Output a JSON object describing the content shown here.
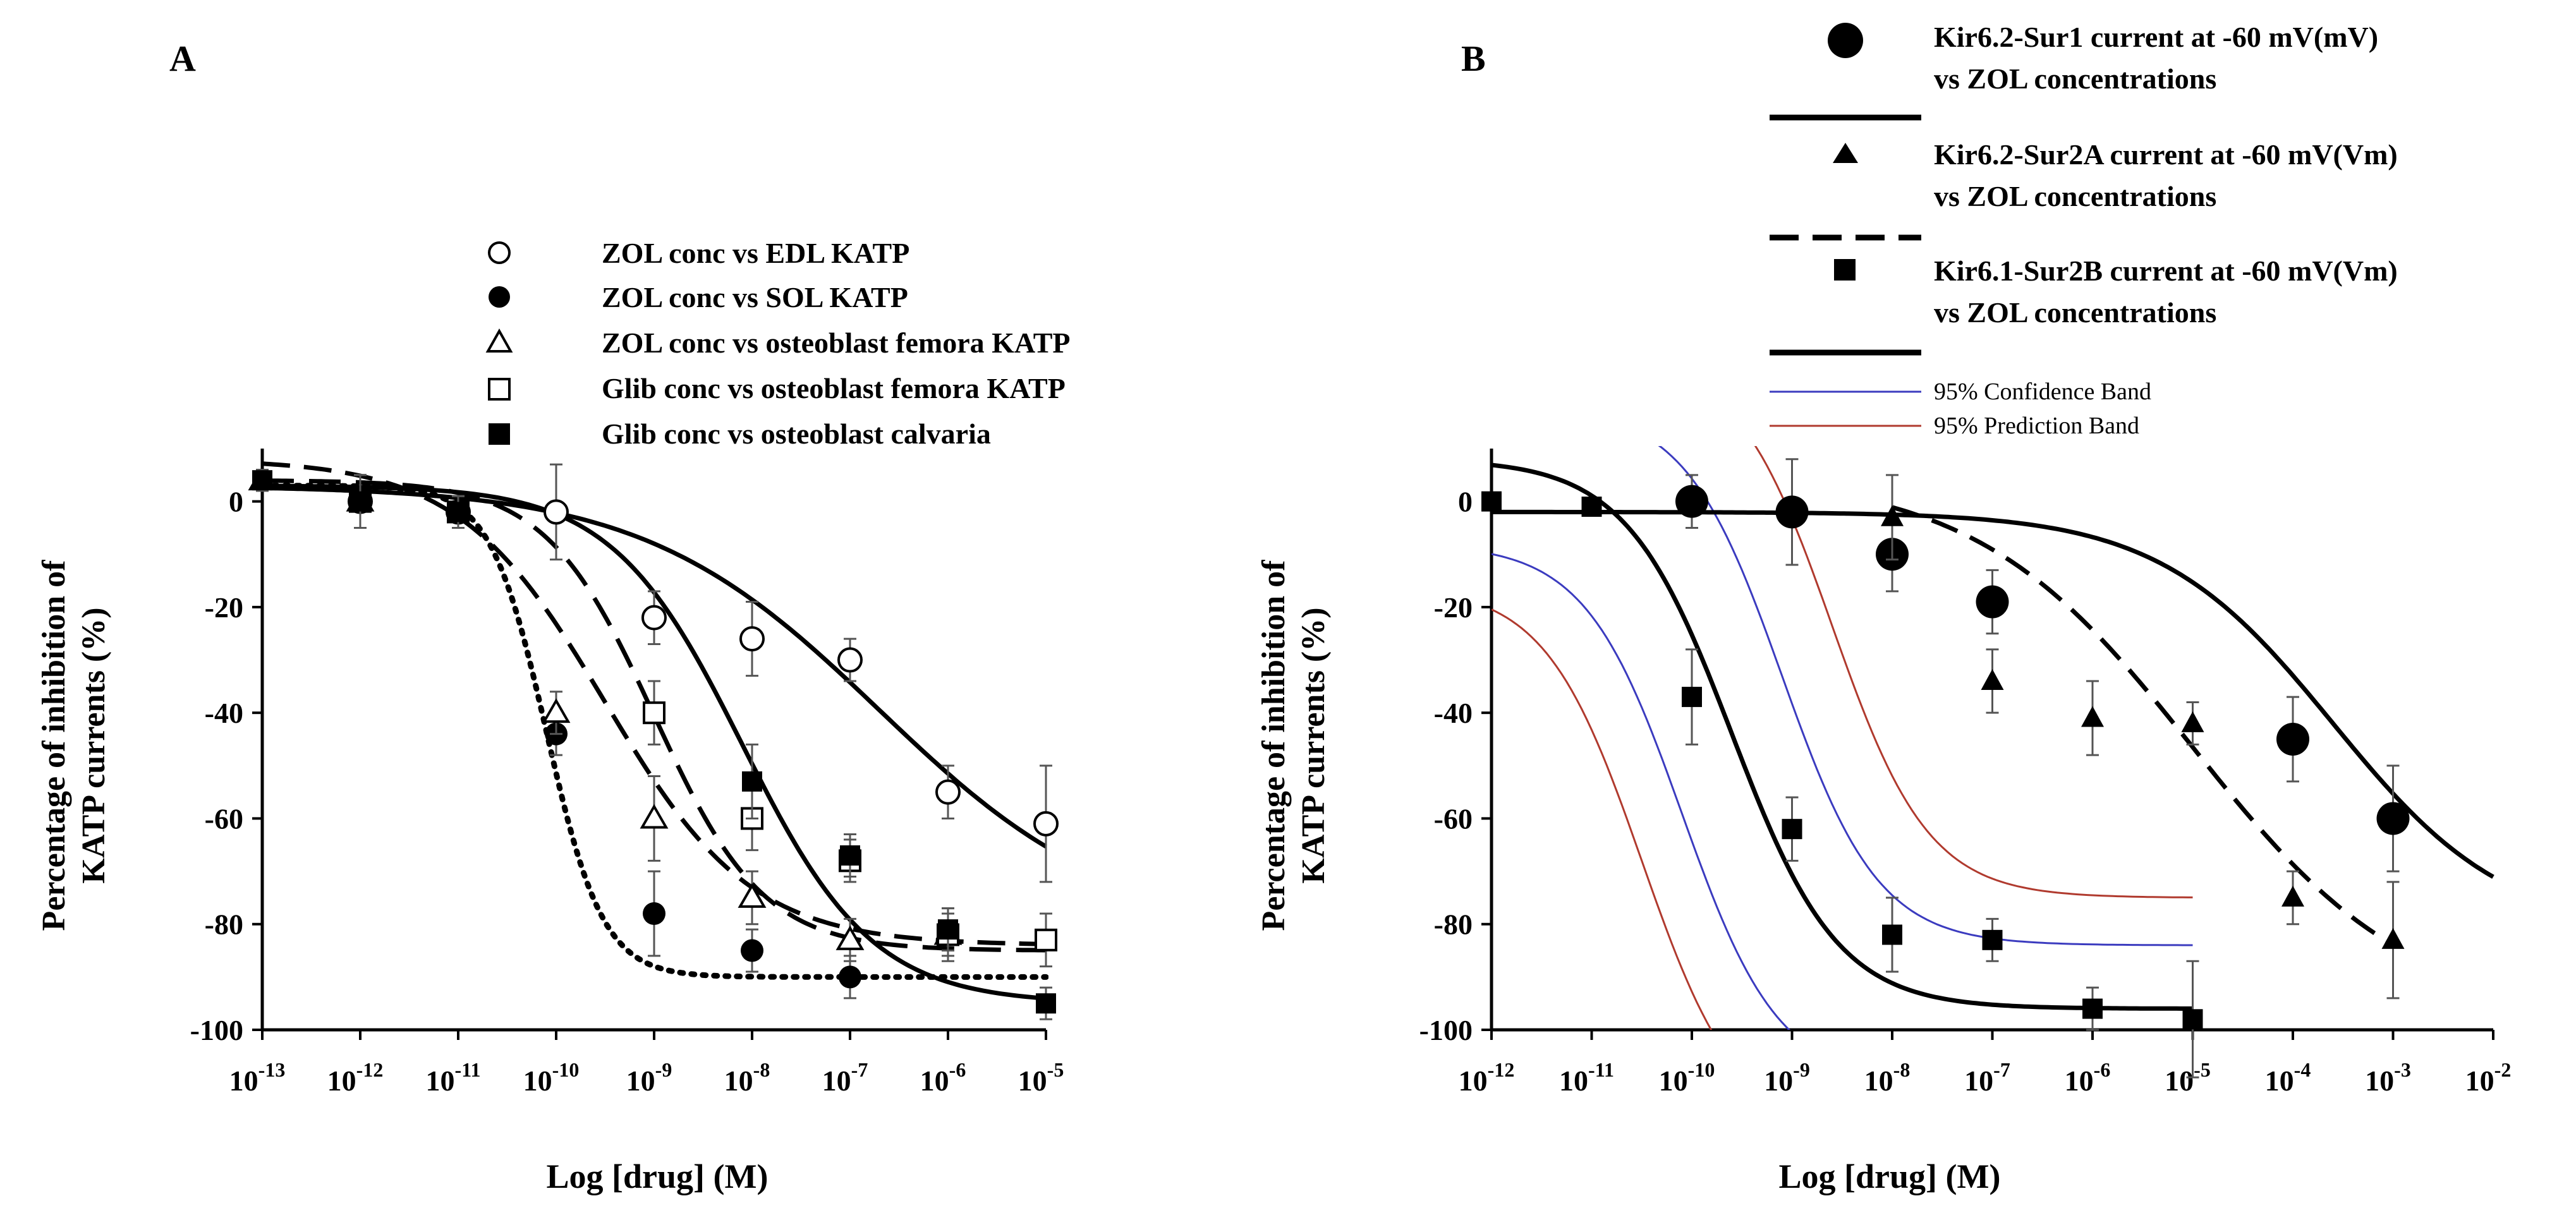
{
  "chart_data": [
    {
      "panel_label": "A",
      "type": "scatter",
      "xlabel": "Log [drug]  (M)",
      "ylabel_line1": "Percentage of inhibition of",
      "ylabel_line2": "KATP currents  (%)",
      "xlim_log10": [
        -13,
        -5
      ],
      "ylim": [
        -100,
        10
      ],
      "x_tick_exponents": [
        "-13",
        "-12",
        "-11",
        "-10",
        "-9",
        "-8",
        "-7",
        "-6",
        "-5"
      ],
      "y_ticks": [
        "0",
        "-20",
        "-40",
        "-60",
        "-80",
        "-100"
      ],
      "legend_position": "top-center",
      "series": [
        {
          "name": "ZOL conc vs EDL KATP",
          "marker": "circle-open",
          "line": "solid",
          "x_log10": [
            -12,
            -11,
            -10,
            -9,
            -8,
            -7,
            -6,
            -5
          ],
          "y": [
            0,
            -2,
            -2,
            -22,
            -26,
            -30,
            -55,
            -61
          ],
          "err": [
            5,
            3,
            9,
            5,
            7,
            4,
            5,
            11
          ]
        },
        {
          "name": "ZOL conc vs SOL KATP",
          "marker": "circle-filled",
          "line": "dotted",
          "x_log10": [
            -12,
            -10,
            -9,
            -8,
            -7
          ],
          "y": [
            0,
            -44,
            -78,
            -85,
            -90
          ],
          "err": [
            5,
            4,
            8,
            4,
            4
          ]
        },
        {
          "name": "ZOL conc vs osteoblast femora KATP",
          "marker": "triangle-open",
          "line": "dashed",
          "x_log10": [
            -13,
            -12,
            -10,
            -9,
            -8,
            -7,
            -6
          ],
          "y": [
            4,
            0,
            -40,
            -60,
            -75,
            -83,
            -82
          ],
          "err": [
            2,
            5,
            4,
            8,
            5,
            4,
            4
          ]
        },
        {
          "name": "Glib conc vs osteoblast femora KATP",
          "marker": "square-open",
          "line": "long-dashed",
          "x_log10": [
            -12,
            -11,
            -9,
            -8,
            -7,
            -6,
            -5
          ],
          "y": [
            0,
            -2,
            -40,
            -60,
            -68,
            -82,
            -83
          ],
          "err": [
            5,
            3,
            6,
            6,
            4,
            5,
            5
          ]
        },
        {
          "name": "Glib conc vs osteoblast calvaria",
          "marker": "square-filled",
          "line": "solid",
          "x_log10": [
            -13,
            -12,
            -11,
            -8,
            -7,
            -6,
            -5
          ],
          "y": [
            4,
            0,
            -2,
            -53,
            -67,
            -81,
            -95
          ],
          "err": [
            2,
            5,
            3,
            7,
            4,
            4,
            3
          ]
        }
      ]
    },
    {
      "panel_label": "B",
      "type": "scatter",
      "xlabel": "Log [drug]  (M)",
      "ylabel_line1": "Percentage of inhibition of",
      "ylabel_line2": "KATP currents  (%)",
      "xlim_log10": [
        -12,
        -2
      ],
      "ylim": [
        -100,
        10
      ],
      "x_tick_exponents": [
        "-12",
        "-11",
        "-10",
        "-9",
        "-8",
        "-7",
        "-6",
        "-5",
        "-4",
        "-3",
        "-2"
      ],
      "y_ticks": [
        "0",
        "-20",
        "-40",
        "-60",
        "-80",
        "-100"
      ],
      "legend_position": "top-right",
      "series": [
        {
          "name": "Kir6.2-Sur1 current at -60 mV(mV) vs ZOL concentrations",
          "name_line1": "Kir6.2-Sur1 current at -60 mV(mV)",
          "name_line2": "vs ZOL concentrations",
          "marker": "circle-large-filled",
          "line": "solid",
          "x_log10": [
            -10,
            -9,
            -8,
            -7,
            -4,
            -3
          ],
          "y": [
            0,
            -2,
            -10,
            -19,
            -45,
            -60
          ],
          "err": [
            5,
            10,
            7,
            6,
            8,
            10
          ]
        },
        {
          "name": "Kir6.2-Sur2A current at -60 mV(Vm) vs ZOL concentrations",
          "name_line1": "Kir6.2-Sur2A current at -60 mV(Vm)",
          "name_line2": "vs ZOL concentrations",
          "marker": "triangle-filled",
          "line": "dashed",
          "x_log10": [
            -8,
            -7,
            -6,
            -5,
            -4,
            -3
          ],
          "y": [
            -3,
            -34,
            -41,
            -42,
            -75,
            -83
          ],
          "err": [
            8,
            6,
            7,
            4,
            5,
            11
          ]
        },
        {
          "name": "Kir6.1-Sur2B  current at -60 mV(Vm) vs ZOL concentrations",
          "name_line1": "Kir6.1-Sur2B  current at -60 mV(Vm)",
          "name_line2": "vs ZOL concentrations",
          "marker": "square-filled",
          "line": "solid",
          "x_log10": [
            -12,
            -11,
            -10,
            -9,
            -8,
            -7,
            -6,
            -5
          ],
          "y": [
            0,
            -1,
            -37,
            -62,
            -82,
            -83,
            -96,
            -98
          ],
          "err": [
            0,
            0,
            9,
            6,
            7,
            4,
            4,
            11
          ]
        }
      ],
      "bands": [
        {
          "name": "95% Confidence Band",
          "color": "#3b3bbf"
        },
        {
          "name": "95% Prediction Band",
          "color": "#b03a2e"
        }
      ]
    }
  ]
}
